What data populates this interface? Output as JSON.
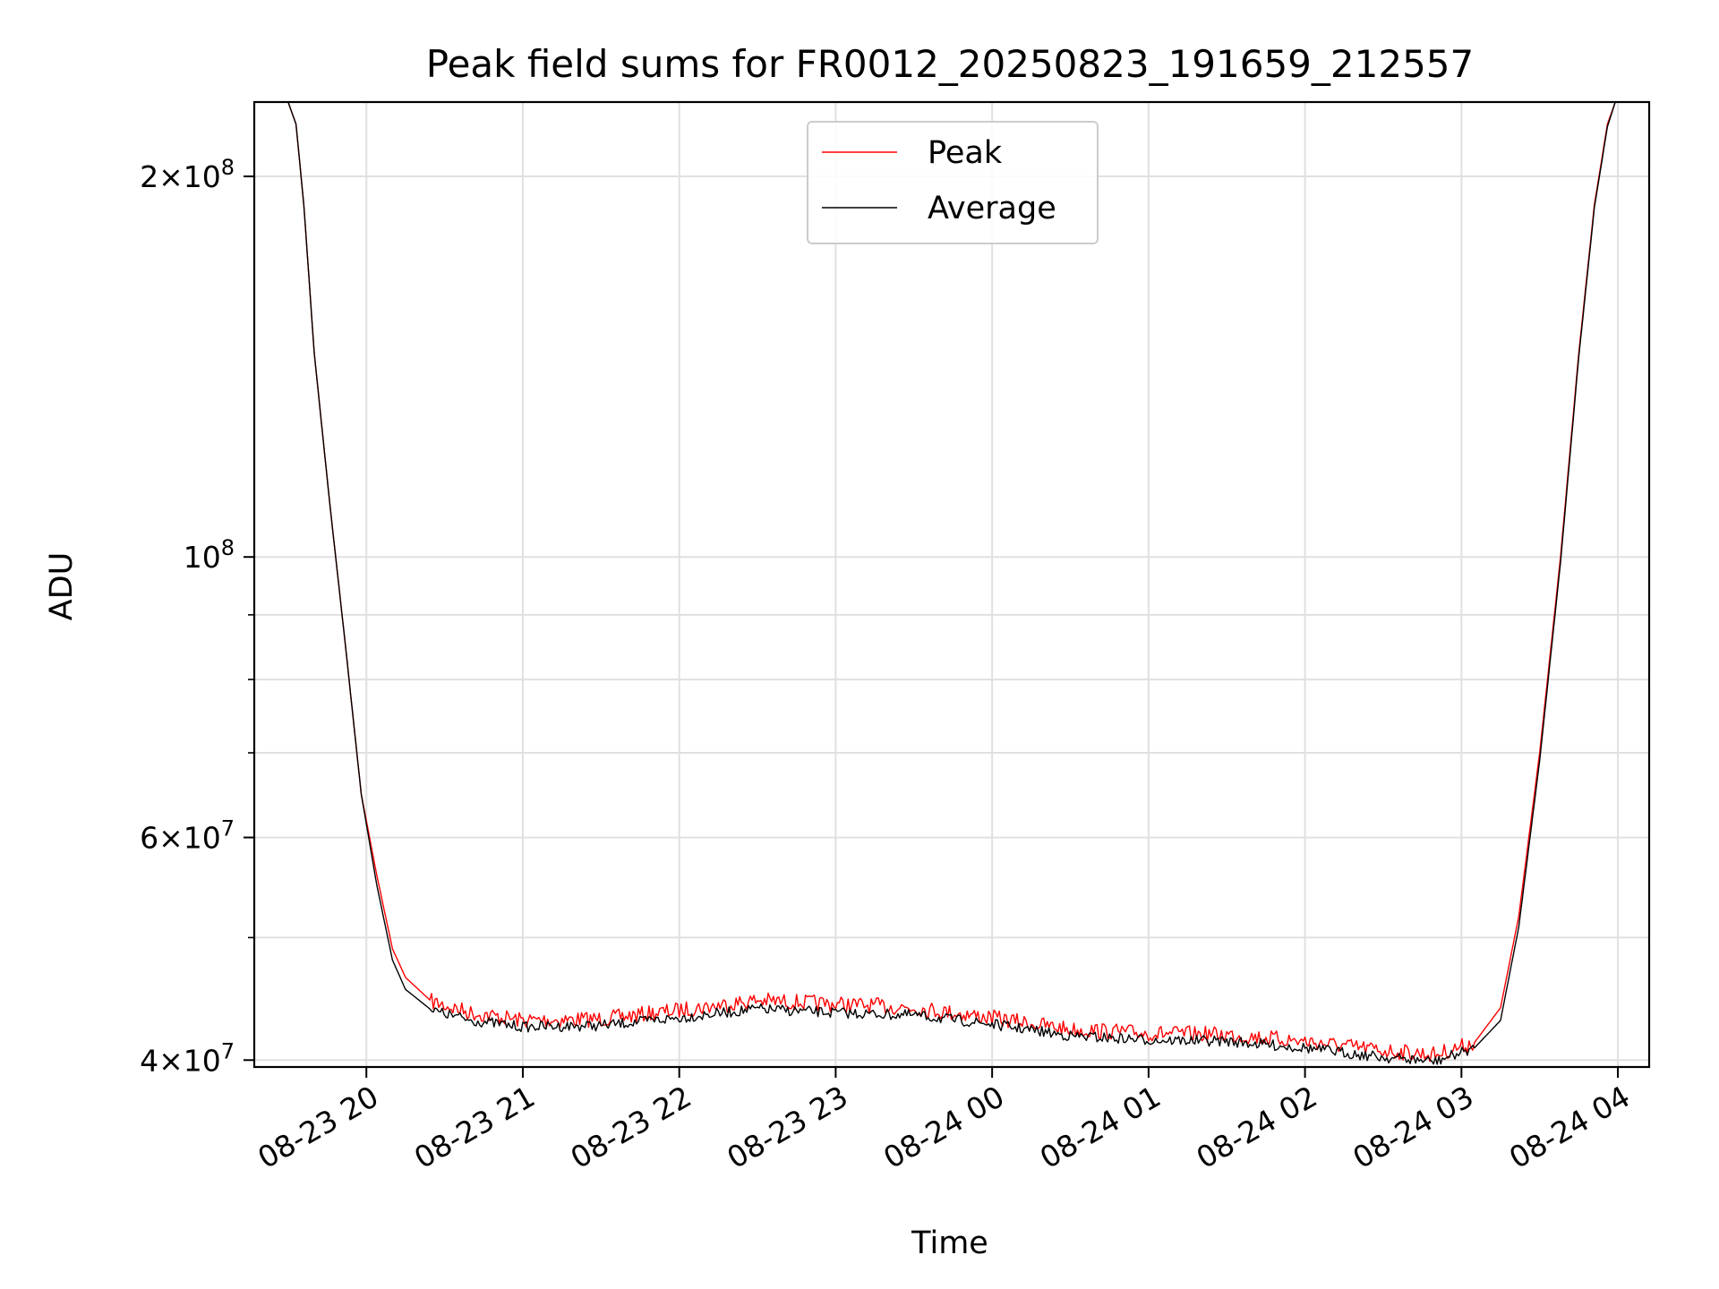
{
  "chart_data": {
    "type": "line",
    "title": "Peak field sums for FR0012_20250823_191659_212557",
    "xlabel": "Time",
    "ylabel": "ADU",
    "yscale": "log",
    "grid": true,
    "legend_position": "top-center",
    "x_tick_labels": [
      "08-23 20",
      "08-23 21",
      "08-23 22",
      "08-23 23",
      "08-24 00",
      "08-24 01",
      "08-24 02",
      "08-24 03",
      "08-24 04"
    ],
    "x_tick_values": [
      "2025-08-23 20:00",
      "2025-08-23 21:00",
      "2025-08-23 22:00",
      "2025-08-23 23:00",
      "2025-08-24 00:00",
      "2025-08-24 01:00",
      "2025-08-24 02:00",
      "2025-08-24 03:00",
      "2025-08-24 04:00"
    ],
    "xlim": [
      "2025-08-23 19:17",
      "2025-08-24 04:12"
    ],
    "y_major_ticks": [
      {
        "value": 40000000,
        "mantissa": "4",
        "exponent": "7"
      },
      {
        "value": 60000000,
        "mantissa": "6",
        "exponent": "7"
      },
      {
        "value": 100000000,
        "mantissa": "",
        "exponent": "8"
      },
      {
        "value": 200000000,
        "mantissa": "2",
        "exponent": "8"
      }
    ],
    "y_minor_ticks": [
      50000000,
      70000000,
      80000000,
      90000000
    ],
    "ylim": [
      39500000,
      229000000
    ],
    "series": [
      {
        "name": "Peak",
        "color": "#ff0000",
        "points": [
          [
            "2025-08-23 19:17",
            229000000
          ],
          [
            "2025-08-23 19:30",
            229000000
          ],
          [
            "2025-08-23 19:33",
            220000000
          ],
          [
            "2025-08-23 19:36",
            190000000
          ],
          [
            "2025-08-23 19:40",
            145000000
          ],
          [
            "2025-08-23 19:46",
            110000000
          ],
          [
            "2025-08-23 19:52",
            85000000
          ],
          [
            "2025-08-23 19:58",
            65000000
          ],
          [
            "2025-08-23 20:04",
            56000000
          ],
          [
            "2025-08-23 20:10",
            49000000
          ],
          [
            "2025-08-23 20:15",
            46500000
          ],
          [
            "2025-08-23 20:25",
            44500000
          ],
          [
            "2025-08-23 20:40",
            43600000
          ],
          [
            "2025-08-23 21:00",
            43000000
          ],
          [
            "2025-08-23 21:30",
            43100000
          ],
          [
            "2025-08-23 22:00",
            43800000
          ],
          [
            "2025-08-23 22:30",
            44600000
          ],
          [
            "2025-08-23 23:00",
            44300000
          ],
          [
            "2025-08-23 23:30",
            44000000
          ],
          [
            "2025-08-24 00:00",
            43200000
          ],
          [
            "2025-08-24 00:30",
            42300000
          ],
          [
            "2025-08-24 01:00",
            42000000
          ],
          [
            "2025-08-24 01:30",
            41900000
          ],
          [
            "2025-08-24 02:00",
            41400000
          ],
          [
            "2025-08-24 02:30",
            40700000
          ],
          [
            "2025-08-24 02:50",
            40400000
          ],
          [
            "2025-08-24 03:05",
            41300000
          ],
          [
            "2025-08-24 03:15",
            44000000
          ],
          [
            "2025-08-24 03:22",
            52000000
          ],
          [
            "2025-08-24 03:30",
            70000000
          ],
          [
            "2025-08-24 03:38",
            100000000
          ],
          [
            "2025-08-24 03:45",
            145000000
          ],
          [
            "2025-08-24 03:51",
            190000000
          ],
          [
            "2025-08-24 03:56",
            220000000
          ],
          [
            "2025-08-24 03:59",
            229000000
          ],
          [
            "2025-08-24 04:12",
            229000000
          ]
        ]
      },
      {
        "name": "Average",
        "color": "#000000",
        "points": [
          [
            "2025-08-23 19:17",
            229000000
          ],
          [
            "2025-08-23 19:30",
            229000000
          ],
          [
            "2025-08-23 19:33",
            220000000
          ],
          [
            "2025-08-23 19:36",
            190000000
          ],
          [
            "2025-08-23 19:40",
            145000000
          ],
          [
            "2025-08-23 19:46",
            110000000
          ],
          [
            "2025-08-23 19:52",
            85000000
          ],
          [
            "2025-08-23 19:58",
            65000000
          ],
          [
            "2025-08-23 20:04",
            55000000
          ],
          [
            "2025-08-23 20:10",
            48000000
          ],
          [
            "2025-08-23 20:15",
            45500000
          ],
          [
            "2025-08-23 20:25",
            43800000
          ],
          [
            "2025-08-23 20:40",
            43000000
          ],
          [
            "2025-08-23 21:00",
            42500000
          ],
          [
            "2025-08-23 21:30",
            42600000
          ],
          [
            "2025-08-23 22:00",
            43200000
          ],
          [
            "2025-08-23 22:30",
            43900000
          ],
          [
            "2025-08-23 23:00",
            43600000
          ],
          [
            "2025-08-23 23:30",
            43400000
          ],
          [
            "2025-08-24 00:00",
            42700000
          ],
          [
            "2025-08-24 00:30",
            41800000
          ],
          [
            "2025-08-24 01:00",
            41500000
          ],
          [
            "2025-08-24 01:30",
            41400000
          ],
          [
            "2025-08-24 02:00",
            40900000
          ],
          [
            "2025-08-24 02:30",
            40200000
          ],
          [
            "2025-08-24 02:50",
            39900000
          ],
          [
            "2025-08-24 03:05",
            40900000
          ],
          [
            "2025-08-24 03:15",
            43000000
          ],
          [
            "2025-08-24 03:22",
            51000000
          ],
          [
            "2025-08-24 03:30",
            69000000
          ],
          [
            "2025-08-24 03:38",
            99000000
          ],
          [
            "2025-08-24 03:45",
            144000000
          ],
          [
            "2025-08-24 03:51",
            189000000
          ],
          [
            "2025-08-24 03:56",
            219000000
          ],
          [
            "2025-08-24 03:59",
            229000000
          ],
          [
            "2025-08-24 04:12",
            229000000
          ]
        ]
      }
    ]
  }
}
